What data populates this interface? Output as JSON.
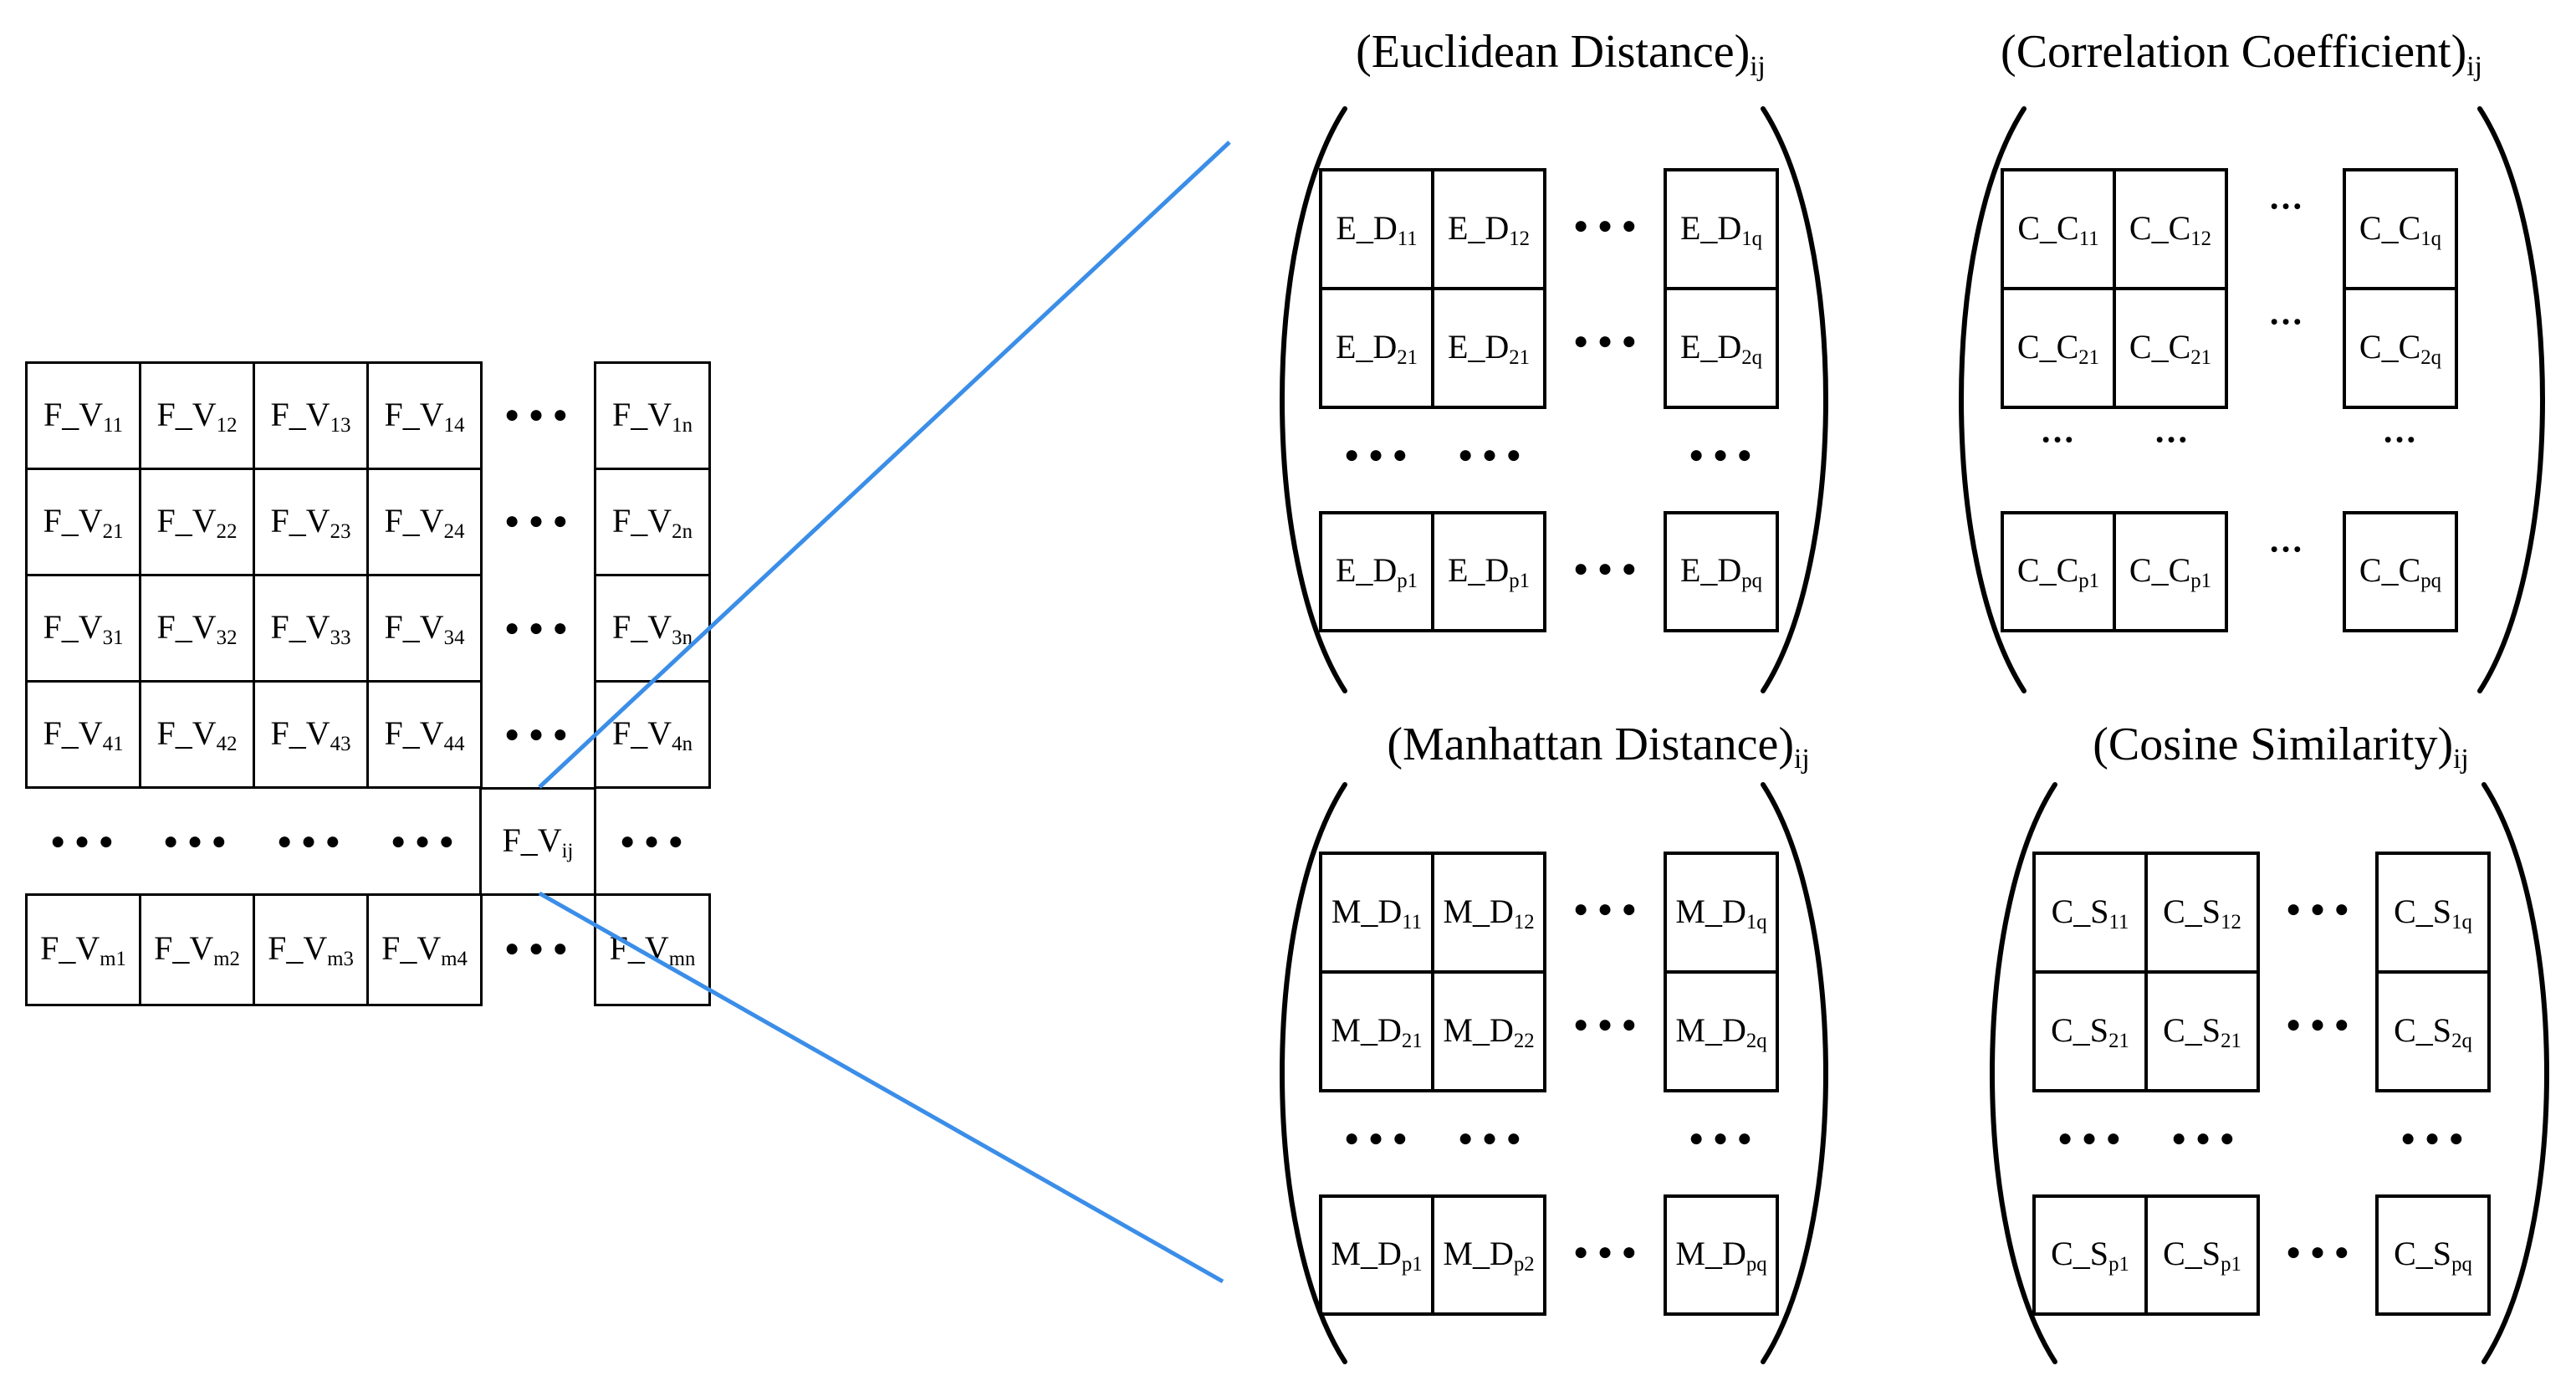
{
  "figure": {
    "feature_matrix": {
      "cell_base": "F_V",
      "grid_subscripts": [
        [
          "11",
          "12",
          "13",
          "14"
        ],
        [
          "21",
          "22",
          "23",
          "24"
        ],
        [
          "31",
          "32",
          "33",
          "34"
        ],
        [
          "41",
          "42",
          "43",
          "44"
        ]
      ],
      "last_col_subscripts": [
        "1n",
        "2n",
        "3n",
        "4n"
      ],
      "center_cell_subscript": "ij",
      "bottom_row_subscripts": [
        "m1",
        "m2",
        "m3",
        "m4"
      ],
      "bottom_last_subscript": "mn"
    },
    "similarity_matrices": [
      {
        "id": "euclidean-distance",
        "title": "(Euclidean Distance)",
        "title_subscript": "ij",
        "cell_base": "E_D",
        "row_subscripts": [
          [
            "11",
            "12",
            "1q"
          ],
          [
            "21",
            "21",
            "2q"
          ],
          [
            "p1",
            "p1",
            "pq"
          ]
        ],
        "dots_style": "large"
      },
      {
        "id": "correlation-coefficient",
        "title": "(Correlation Coefficient)",
        "title_subscript": "ij",
        "cell_base": "C_C",
        "row_subscripts": [
          [
            "11",
            "12",
            "1q"
          ],
          [
            "21",
            "21",
            "2q"
          ],
          [
            "p1",
            "p1",
            "pq"
          ]
        ],
        "dots_style": "small"
      },
      {
        "id": "manhattan-distance",
        "title": "(Manhattan Distance)",
        "title_subscript": "ij",
        "cell_base": "M_D",
        "row_subscripts": [
          [
            "11",
            "12",
            "1q"
          ],
          [
            "21",
            "22",
            "2q"
          ],
          [
            "p1",
            "p2",
            "pq"
          ]
        ],
        "dots_style": "large"
      },
      {
        "id": "cosine-similarity",
        "title": "(Cosine Similarity)",
        "title_subscript": "ij",
        "cell_base": "C_S",
        "row_subscripts": [
          [
            "11",
            "12",
            "1q"
          ],
          [
            "21",
            "21",
            "2q"
          ],
          [
            "p1",
            "p1",
            "pq"
          ]
        ],
        "dots_style": "large"
      }
    ],
    "colors": {
      "connector": "#3B8EE8",
      "ink": "#000000",
      "background": "#FFFFFF"
    }
  }
}
